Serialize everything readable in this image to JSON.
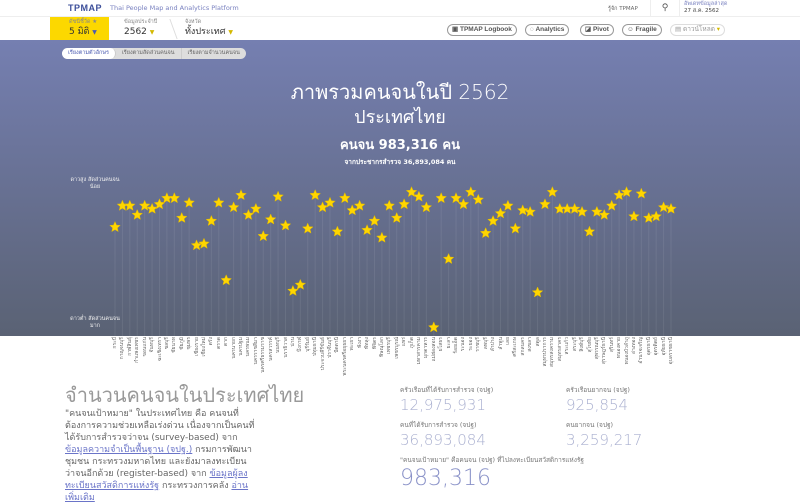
{
  "header": {
    "logo": "TPMAP",
    "tagline": "Thai People Map and Analytics Platform",
    "about": "รู้จัก TPMAP",
    "search_icon": "search-icon",
    "update_label": "อัพเดทข้อมูลล่าสุด",
    "update_date": "27 ส.ค. 2562"
  },
  "filters": {
    "index_label": "ดัชนีชี้วัด ★",
    "index_value": "5 มิติ",
    "year_label": "ข้อมูลประจำปี",
    "year_value": "2562",
    "province_label": "จังหวัด",
    "province_value": "ทั้งประเทศ"
  },
  "toolbar": {
    "logbook": "TPMAP Logbook",
    "analytics": "Analytics",
    "pivot": "Pivot",
    "fragile": "Fragile",
    "download": "ดาวน์โหลด"
  },
  "tabs": [
    "เรียงตามตัวอักษร",
    "เรียงตามสัดส่วนคนจน",
    "เรียงตามจำนวนคนจน"
  ],
  "hero": {
    "title": "ภาพรวมคนจนในปี 2562",
    "subtitle": "ประเทศไทย",
    "poor_count": "คนจน 983,316 คน",
    "surveyed": "จากประชากรสำรวจ 36,893,084 คน"
  },
  "colors": {
    "star": "#ffd600",
    "hero_top": "#757fb1",
    "hero_bottom": "#5a6274",
    "highlight": "#fcd800"
  },
  "chart_data": {
    "type": "scatter",
    "marker": "star",
    "y_top_label": "ดาวสูง สัดส่วนคนจนน้อย",
    "y_bottom_label": "ดาวต่ำ สัดส่วนคนจนมาก",
    "categories": [
      "กระบี่",
      "กาญจนบุรี",
      "กาฬสินธุ์",
      "กำแพงเพชร",
      "ขอนแก่น",
      "จันทบุรี",
      "ฉะเชิงเทรา",
      "ชลบุรี",
      "ชัยนาท",
      "ชัยภูมิ",
      "ชุมพร",
      "เชียงราย",
      "เชียงใหม่",
      "ตรัง",
      "ตราด",
      "ตาก",
      "นครนายก",
      "นครปฐม",
      "นครพนม",
      "นครราชสีมา",
      "นครศรีธรรมราช",
      "นครสวรรค์",
      "นนทบุรี",
      "นราธิวาส",
      "น่าน",
      "บึงกาฬ",
      "บุรีรัมย์",
      "ปทุมธานี",
      "ประจวบคีรีขันธ์",
      "ปราจีนบุรี",
      "ปัตตานี",
      "พระนครศรีอยุธยา",
      "พะเยา",
      "พังงา",
      "พัทลุง",
      "พิจิตร",
      "พิษณุโลก",
      "เพชรบุรี",
      "เพชรบูรณ์",
      "แพร่",
      "ภูเก็ต",
      "มหาสารคาม",
      "มุกดาหาร",
      "แม่ฮ่องสอน",
      "ยโสธร",
      "ยะลา",
      "ร้อยเอ็ด",
      "ระนอง",
      "ระยอง",
      "ราชบุรี",
      "ลพบุรี",
      "ลำปาง",
      "ลำพูน",
      "เลย",
      "ศรีสะเกษ",
      "สกลนคร",
      "สงขลา",
      "สตูล",
      "สมุทรปราการ",
      "สมุทรสงคราม",
      "สมุทรสาคร",
      "สระแก้ว",
      "สระบุรี",
      "สิงห์บุรี",
      "สุโขทัย",
      "สุพรรณบุรี",
      "สุราษฎร์ธานี",
      "สุรินทร์",
      "หนองคาย",
      "หนองบัวลำภู",
      "อ่างทอง",
      "อำนาจเจริญ",
      "อุดรธานี",
      "อุตรดิตถ์",
      "อุทัยธานี",
      "อุบลราชธานี"
    ],
    "values": [
      69,
      83,
      83,
      77,
      83,
      81,
      84,
      88,
      88,
      75,
      85,
      57,
      58,
      73,
      85,
      34,
      82,
      90,
      77,
      81,
      63,
      74,
      89,
      70,
      27,
      31,
      68,
      90,
      82,
      85,
      66,
      88,
      80,
      83,
      67,
      73,
      62,
      83,
      75,
      84,
      92,
      89,
      82,
      3,
      88,
      48,
      88,
      84,
      92,
      87,
      65,
      73,
      78,
      83,
      68,
      80,
      79,
      26,
      84,
      92,
      81,
      81,
      81,
      79,
      66,
      79,
      77,
      83,
      90,
      92,
      76,
      91,
      75,
      76,
      82,
      81
    ],
    "ylim": [
      0,
      100
    ],
    "grid": "vertical"
  },
  "section": {
    "title": "จำนวนคนจนในประเทศไทย",
    "p1": "\"คนจนเป้าหมาย\" ในประเทศไทย คือ คนจนที่ต้องการความช่วยเหลือเร่งด่วน เนื่องจากเป็นคนที่ได้รับการสำรวจว่าจน (survey-based) จาก ",
    "link1": "ข้อมูลความจำเป็นพื้นฐาน (จปฐ.)",
    "p2": " กรมการพัฒนาชุมชน กระทรวงมหาดไทย และยังมาลงทะเบียนว่าจนอีกด้วย (register-based) จาก ",
    "link2": "ข้อมูลผู้ลงทะเบียนสวัสดิการแห่งรัฐ",
    "p3": " กระทรวงการคลัง ",
    "link3": "อ่านเพิ่มเติม"
  },
  "stats": {
    "hh_label": "ครัวเรือนที่ได้รับการสำรวจ (จปฐ)",
    "hh_value": "12,975,931",
    "poor_hh_label": "ครัวเรือนยากจน (จปฐ)",
    "poor_hh_value": "925,854",
    "people_label": "คนที่ได้รับการสำรวจ (จปฐ)",
    "people_value": "36,893,084",
    "poor_people_label": "คนยากจน (จปฐ)",
    "poor_people_value": "3,259,217",
    "target_label": "\"คนจนเป้าหมาย\" คือคนจน (จปฐ) ที่ไปลงทะเบียนสวัสดิการแห่งรัฐ",
    "target_value": "983,316"
  }
}
